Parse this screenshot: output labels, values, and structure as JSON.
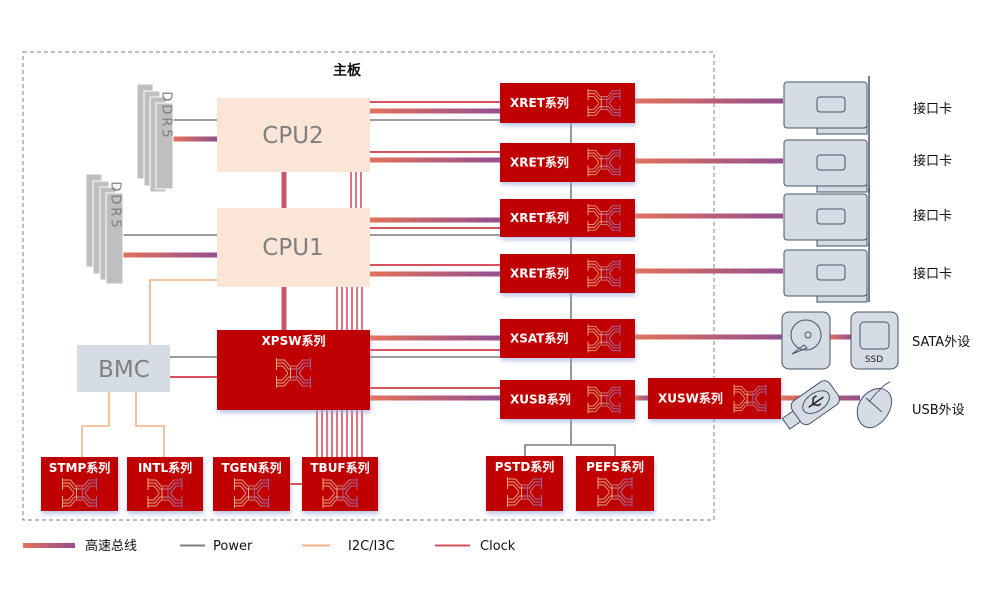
{
  "board_title": "主板",
  "cpus": [
    {
      "label": "CPU2"
    },
    {
      "label": "CPU1"
    }
  ],
  "ddr": [
    {
      "label": "DDR5"
    },
    {
      "label": "DDR5"
    }
  ],
  "bmc": {
    "label": "BMC"
  },
  "chips": {
    "xpsw": "XPSW系列",
    "xret": [
      "XRET系列",
      "XRET系列",
      "XRET系列",
      "XRET系列"
    ],
    "xsat": "XSAT系列",
    "xusb": "XUSB系列",
    "xusw": "XUSW系列",
    "stmp": "STMP系列",
    "intl": "INTL系列",
    "tgen": "TGEN系列",
    "tbuf": "TBUF系列",
    "pstd": "PSTD系列",
    "pefs": "PEFS系列"
  },
  "peripherals": {
    "cards": [
      "接口卡",
      "接口卡",
      "接口卡",
      "接口卡"
    ],
    "sata": "SATA外设",
    "ssd": "SSD",
    "usb": "USB外设"
  },
  "legend": [
    {
      "label": "高速总线",
      "kind": "high-speed-bus"
    },
    {
      "label": "Power",
      "kind": "power"
    },
    {
      "label": "I2C/I3C",
      "kind": "i2c"
    },
    {
      "label": "Clock",
      "kind": "clock"
    }
  ],
  "colors": {
    "chip": "#c00000",
    "cpu": "#fbe5d6",
    "bmc": "#d6dce4",
    "bus_start": "#e2725b",
    "bus_end": "#934f8f",
    "power": "#7f7f7f",
    "i2c": "#f4b183",
    "clock": "#d9505f",
    "device": "#d6dce4",
    "device_stroke": "#44546a"
  }
}
